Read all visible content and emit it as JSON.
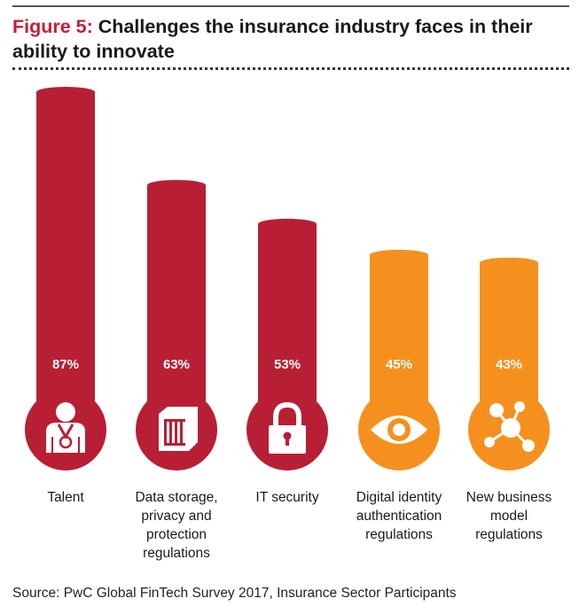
{
  "header": {
    "figure_label": "Figure 5:",
    "title": "Challenges the insurance industry faces in their ability to innovate"
  },
  "chart_data": {
    "type": "bar",
    "categories": [
      "Talent",
      "Data storage, privacy and protection regulations",
      "IT security",
      "Digital identity authentication regulations",
      "New business model regulations"
    ],
    "category_label_lines": [
      [
        "Talent"
      ],
      [
        "Data storage,",
        "privacy and",
        "protection",
        "regulations"
      ],
      [
        "IT security"
      ],
      [
        "Digital identity",
        "authentication",
        "regulations"
      ],
      [
        "New business",
        "model",
        "regulations"
      ]
    ],
    "values": [
      87,
      63,
      53,
      45,
      43
    ],
    "value_labels": [
      "87%",
      "63%",
      "53%",
      "45%",
      "43%"
    ],
    "icons": [
      "medal-person-icon",
      "server-rack-icon",
      "padlock-icon",
      "eye-icon",
      "network-nodes-icon"
    ],
    "bar_colors": [
      "#b81f34",
      "#b81f34",
      "#b81f34",
      "#f5901e",
      "#f5901e"
    ],
    "title": "Challenges the insurance industry faces in their ability to innovate",
    "xlabel": "",
    "ylabel": "",
    "ylim": [
      0,
      100
    ],
    "grid": false,
    "legend": "none"
  },
  "footer": {
    "source": "Source: PwC Global FinTech Survey 2017, Insurance Sector Participants"
  },
  "colors": {
    "accent_red": "#b81f34",
    "accent_orange": "#f5901e",
    "title_red": "#c41e3a"
  }
}
